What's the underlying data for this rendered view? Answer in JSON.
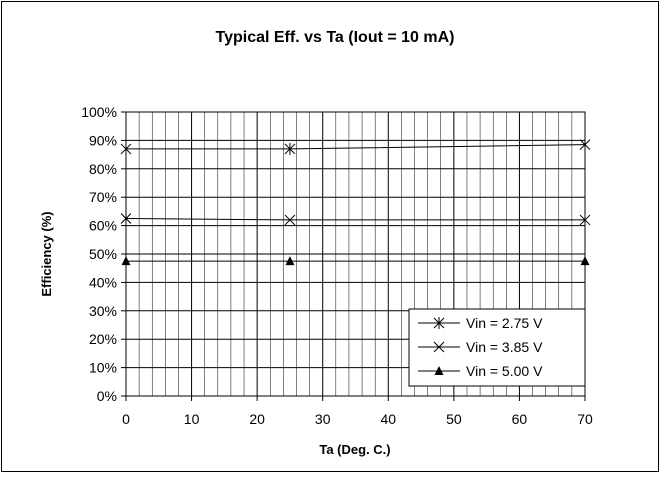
{
  "chart_data": {
    "type": "line",
    "title": "Typical Eff. vs Ta (Iout = 10 mA)",
    "xlabel": "Ta (Deg. C.)",
    "ylabel": "Efficiency (%)",
    "xlim": [
      0,
      70
    ],
    "ylim": [
      0,
      100
    ],
    "x_ticks": [
      "0",
      "10",
      "20",
      "30",
      "40",
      "50",
      "60",
      "70"
    ],
    "y_ticks": [
      "0%",
      "10%",
      "20%",
      "30%",
      "40%",
      "50%",
      "60%",
      "70%",
      "80%",
      "90%",
      "100%"
    ],
    "grid": true,
    "legend_position": "bottom-right",
    "series": [
      {
        "name": "Vin = 2.75 V",
        "marker": "star",
        "x": [
          0,
          25,
          70
        ],
        "y": [
          87,
          87,
          88.5
        ]
      },
      {
        "name": "Vin = 3.85 V",
        "marker": "x",
        "x": [
          0,
          25,
          70
        ],
        "y": [
          62.5,
          62,
          62
        ]
      },
      {
        "name": "Vin = 5.00 V",
        "marker": "triangle",
        "x": [
          0,
          25,
          70
        ],
        "y": [
          47.5,
          47.5,
          47.5
        ]
      }
    ]
  }
}
